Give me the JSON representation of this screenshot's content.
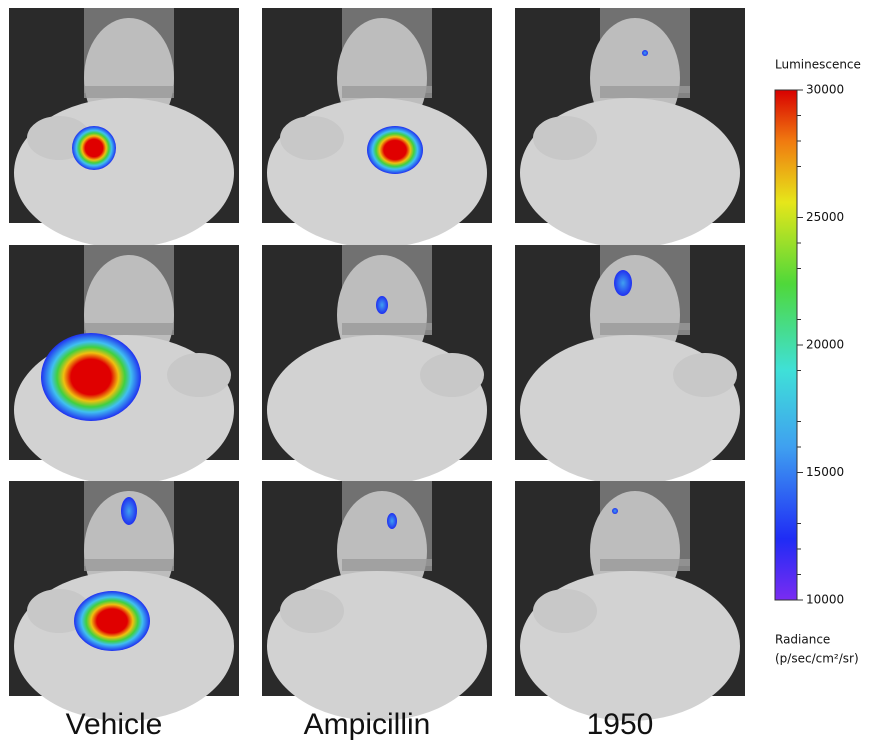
{
  "columns": [
    "Vehicle",
    "Ampicillin",
    "1950"
  ],
  "colorbar": {
    "title": "Luminescence",
    "ticks": [
      10000,
      15000,
      20000,
      25000,
      30000
    ],
    "unit_label": "Radiance",
    "unit": "(p/sec/cm²/sr)"
  }
}
